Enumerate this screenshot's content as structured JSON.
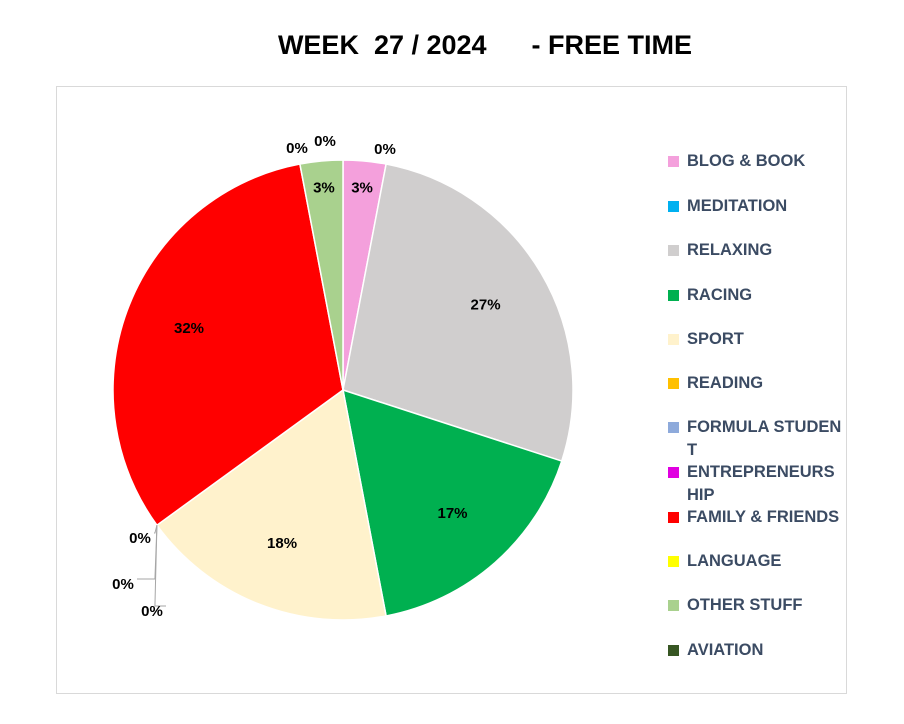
{
  "title": "WEEK  27 / 2024      - FREE TIME",
  "chart_data": {
    "type": "pie",
    "title": "WEEK  27 / 2024      - FREE TIME",
    "legend_position": "right",
    "slices": [
      {
        "name": "BLOG & BOOK",
        "value": 3,
        "label": "3%",
        "color": "#f4a0dc"
      },
      {
        "name": "MEDITATION",
        "value": 0,
        "label": "0%",
        "color": "#00b0f0"
      },
      {
        "name": "RELAXING",
        "value": 27,
        "label": "27%",
        "color": "#d0cece"
      },
      {
        "name": "RACING",
        "value": 17,
        "label": "17%",
        "color": "#00b050"
      },
      {
        "name": "SPORT",
        "value": 18,
        "label": "18%",
        "color": "#fff2cc"
      },
      {
        "name": "READING",
        "value": 0,
        "label": "0%",
        "color": "#ffc000"
      },
      {
        "name": "FORMULA STUDENT",
        "value": 0,
        "label": "0%",
        "color": "#8eaadb"
      },
      {
        "name": "ENTREPRENEURSHIP",
        "value": 0,
        "label": "0%",
        "color": "#e000e0"
      },
      {
        "name": "FAMILY & FRIENDS",
        "value": 32,
        "label": "32%",
        "color": "#ff0000"
      },
      {
        "name": "LANGUAGE",
        "value": 0,
        "label": "0%",
        "color": "#ffff00"
      },
      {
        "name": "OTHER STUFF",
        "value": 3,
        "label": "3%",
        "color": "#a9d18e"
      },
      {
        "name": "AVIATION",
        "value": 0,
        "label": "0%",
        "color": "#375623"
      }
    ]
  }
}
